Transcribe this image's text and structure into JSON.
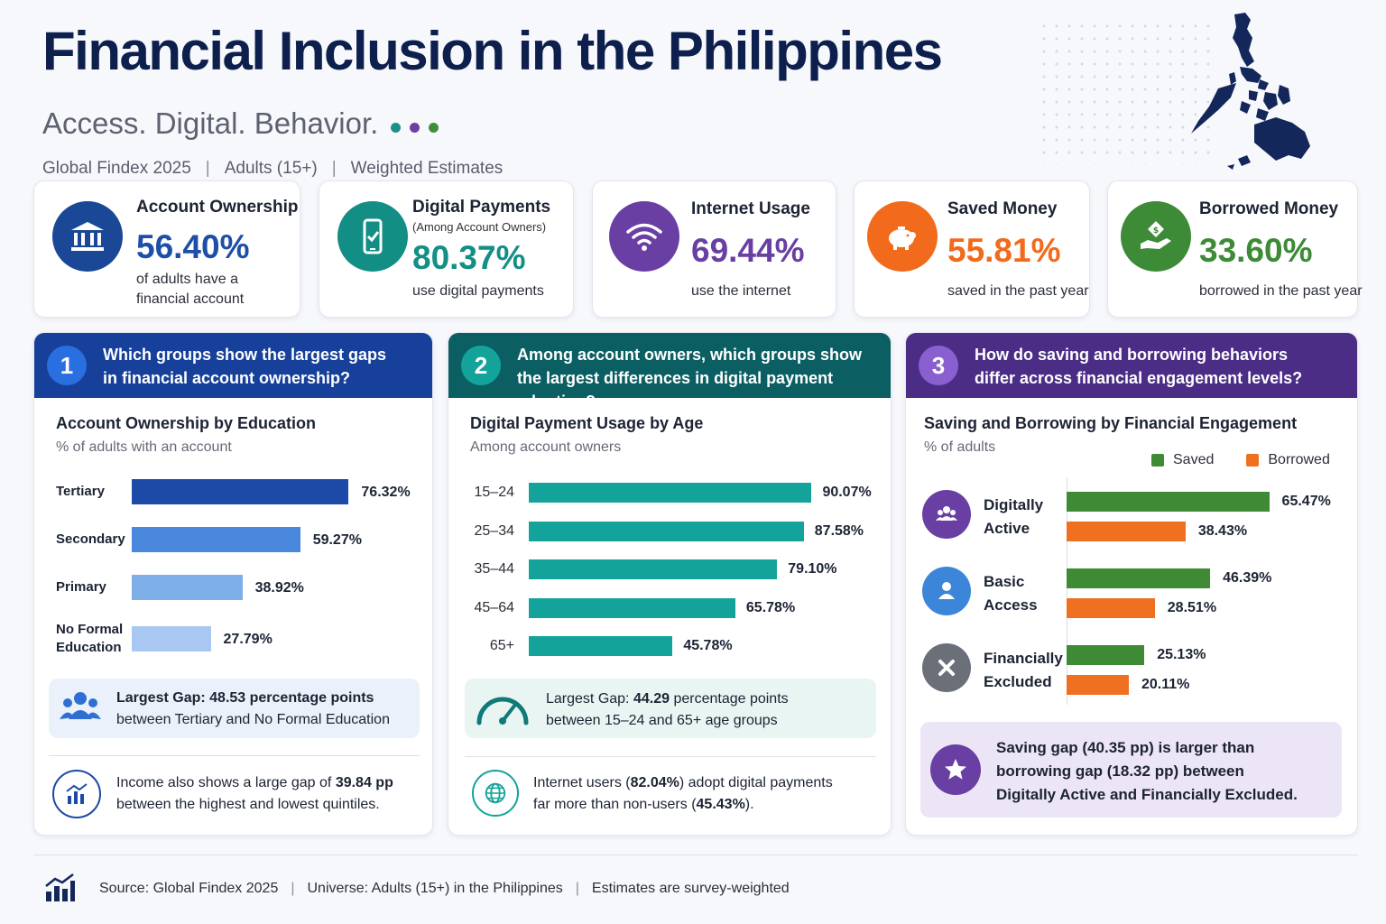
{
  "header": {
    "title": "Financial Inclusion in the Philippines",
    "subtitle": "Access. Digital. Behavior.",
    "meta": [
      "Global Findex 2025",
      "Adults (15+)",
      "Weighted Estimates"
    ],
    "dot_colors": [
      "#1f8f88",
      "#6b3fa0",
      "#3f8f3a"
    ]
  },
  "kpis": [
    {
      "title": "Account Ownership",
      "note": "",
      "value": "56.40%",
      "desc": [
        "of adults have a",
        "financial account"
      ],
      "color": "#1d4fa8",
      "icon": "bank-icon"
    },
    {
      "title": "Digital Payments",
      "note": "(Among Account Owners)",
      "value": "80.37%",
      "desc": [
        "use digital payments"
      ],
      "color": "#138f86",
      "icon": "smartphone-icon"
    },
    {
      "title": "Internet Usage",
      "note": "",
      "value": "69.44%",
      "desc": [
        "use the internet"
      ],
      "color": "#6a3fa3",
      "icon": "wifi-icon"
    },
    {
      "title": "Saved Money",
      "note": "",
      "value": "55.81%",
      "desc": [
        "saved in the past year"
      ],
      "color": "#f26a1b",
      "icon": "piggy-bank-icon"
    },
    {
      "title": "Borrowed Money",
      "note": "",
      "value": "33.60%",
      "desc": [
        "borrowed in the past year"
      ],
      "color": "#3d8a37",
      "icon": "hand-money-icon"
    }
  ],
  "panels": {
    "p1": {
      "num": "1",
      "question": [
        "Which groups show the largest gaps",
        "in financial account ownership?"
      ],
      "chart_title": "Account Ownership by Education",
      "chart_sub": "% of adults with an account",
      "callout1_prefix": "Largest Gap: ",
      "callout1_bold": "48.53",
      "callout1_mid": " percentage points",
      "callout1_line2": "between Tertiary and No Formal Education",
      "callout2_prefix": "Income also shows a large gap of ",
      "callout2_bold": "39.84 pp",
      "callout2_line2": "between the highest and lowest quintiles."
    },
    "p2": {
      "num": "2",
      "question": [
        "Among account owners, which groups show",
        "the largest differences in digital payment adoption?"
      ],
      "chart_title": "Digital Payment Usage by Age",
      "chart_sub": "Among account owners",
      "callout1_prefix": "Largest Gap: ",
      "callout1_bold": "44.29",
      "callout1_mid": " percentage points",
      "callout1_line2": "between 15–24 and 65+ age groups",
      "callout2_a": "Internet users (",
      "callout2_b": "82.04%",
      "callout2_c": ") adopt digital payments",
      "callout2_d": "far more than non-users (",
      "callout2_e": "45.43%",
      "callout2_f": ")."
    },
    "p3": {
      "num": "3",
      "question": [
        "How do saving and borrowing behaviors",
        "differ across financial engagement levels?"
      ],
      "chart_title": "Saving and Borrowing by Financial Engagement",
      "chart_sub": "% of adults",
      "callout_lines": [
        "Saving gap (40.35 pp) is larger than",
        "borrowing gap (18.32 pp) between",
        "Digitally Active and Financially Excluded."
      ]
    }
  },
  "footer": [
    "Source: Global Findex 2025",
    "Universe: Adults (15+) in the Philippines",
    "Estimates are survey-weighted"
  ],
  "chart_data": [
    {
      "type": "bar",
      "title": "Account Ownership by Education",
      "subtitle": "% of adults with an account",
      "categories": [
        "Tertiary",
        "Secondary",
        "Primary",
        "No Formal Education"
      ],
      "values": [
        76.32,
        59.27,
        38.92,
        27.79
      ],
      "colors": [
        "#1d4aa6",
        "#4a88dd",
        "#7eafe8",
        "#a9c8f1"
      ],
      "value_suffix": "%"
    },
    {
      "type": "bar",
      "title": "Digital Payment Usage by Age",
      "subtitle": "Among account owners",
      "categories": [
        "15–24",
        "25–34",
        "35–44",
        "45–64",
        "65+"
      ],
      "values": [
        90.07,
        87.58,
        79.1,
        65.78,
        45.78
      ],
      "colors": [
        "#14a39a"
      ],
      "value_suffix": "%"
    },
    {
      "type": "bar",
      "title": "Saving and Borrowing by Financial Engagement",
      "subtitle": "% of adults",
      "categories": [
        "Digitally Active",
        "Basic Access",
        "Financially Excluded"
      ],
      "series": [
        {
          "name": "Saved",
          "values": [
            65.47,
            46.39,
            25.13
          ],
          "color": "#3e8a35"
        },
        {
          "name": "Borrowed",
          "values": [
            38.43,
            28.51,
            20.11
          ],
          "color": "#f07021"
        }
      ],
      "value_suffix": "%",
      "legend": "top-right"
    }
  ]
}
